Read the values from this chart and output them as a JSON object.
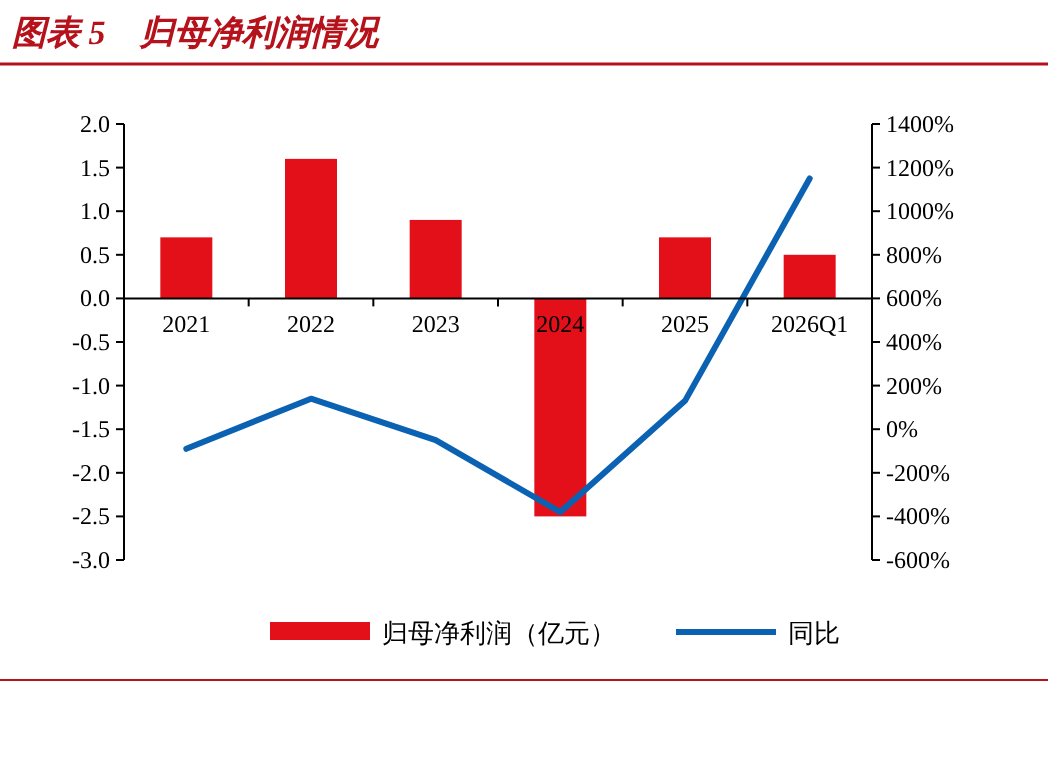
{
  "chart_data": {
    "type": "bar",
    "title": "图表 5　归母净利润情况",
    "categories": [
      "2021",
      "2022",
      "2023",
      "2024",
      "2025",
      "2026Q1"
    ],
    "series": [
      {
        "name": "归母净利润（亿元）",
        "color": "#e3101a",
        "values": [
          0.7,
          1.6,
          0.9,
          -2.5,
          0.7,
          0.5
        ]
      },
      {
        "name": "同比",
        "type": "line",
        "axis": "y2",
        "color": "#0b62b3",
        "values": [
          -90,
          140,
          -50,
          -380,
          130,
          1150
        ]
      }
    ],
    "ylim": [
      -3.0,
      2.0
    ],
    "yticks": [
      {
        "value": -3,
        "label": "-3.0"
      },
      {
        "value": -2.5,
        "label": "-2.5"
      },
      {
        "value": -2,
        "label": "-2.0"
      },
      {
        "value": -1.5,
        "label": "-1.5"
      },
      {
        "value": -1,
        "label": "-1.0"
      },
      {
        "value": -0.5,
        "label": "-0.5"
      },
      {
        "value": 0,
        "label": "0.0"
      },
      {
        "value": 0.5,
        "label": "0.5"
      },
      {
        "value": 1,
        "label": "1.0"
      },
      {
        "value": 1.5,
        "label": "1.5"
      },
      {
        "value": 2,
        "label": "2.0"
      }
    ],
    "y2lim": [
      -600,
      1400
    ],
    "y2ticks": [
      {
        "value": -600,
        "label": "-600%"
      },
      {
        "value": -400,
        "label": "-400%"
      },
      {
        "value": -200,
        "label": "-200%"
      },
      {
        "value": 0,
        "label": "0%"
      },
      {
        "value": 200,
        "label": "200%"
      },
      {
        "value": 400,
        "label": "400%"
      },
      {
        "value": 600,
        "label": "600%"
      },
      {
        "value": 800,
        "label": "800%"
      },
      {
        "value": 1000,
        "label": "1000%"
      },
      {
        "value": 1200,
        "label": "1200%"
      },
      {
        "value": 1400,
        "label": "1400%"
      }
    ],
    "legend": "bottom",
    "grid": false
  }
}
